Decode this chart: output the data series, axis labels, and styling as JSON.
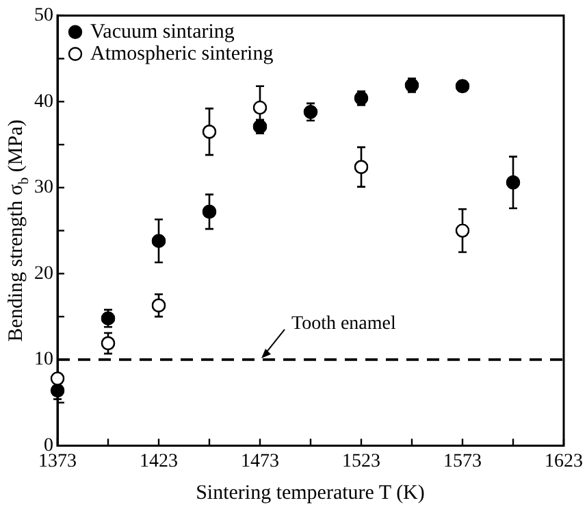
{
  "chart_data": {
    "type": "scatter",
    "xlabel": "Sintering temperature T (K)",
    "ylabel": "Bending strength σ$_{b}$ (MPa)",
    "xlim": [
      1373,
      1623
    ],
    "xticks": [
      1373,
      {
        "value": 1398,
        "label": null
      },
      1423,
      {
        "value": 1448,
        "label": null
      },
      1473,
      {
        "value": 1498,
        "label": null
      },
      1523,
      {
        "value": 1548,
        "label": null
      },
      1573,
      {
        "value": 1598,
        "label": null
      },
      1623
    ],
    "ylim": [
      0,
      50
    ],
    "yticks": [
      0,
      {
        "value": 5,
        "label": null
      },
      10,
      {
        "value": 15,
        "label": null
      },
      20,
      {
        "value": 25,
        "label": null
      },
      30,
      {
        "value": 35,
        "label": null
      },
      40,
      {
        "value": 45,
        "label": null
      },
      50
    ],
    "grid": false,
    "legend": "top left",
    "marker": "circle",
    "series": [
      {
        "name": "Vacuum sintaring",
        "color": "#000000",
        "x": [
          1373,
          1398,
          1423,
          1448,
          1473,
          1498,
          1523,
          1548,
          1573,
          1598
        ],
        "values": [
          6.4,
          14.8,
          23.8,
          27.2,
          37.1,
          38.8,
          40.4,
          41.9,
          41.8,
          30.6
        ],
        "errors": [
          1,
          1,
          2.5,
          2,
          0.8,
          1,
          0.8,
          0.8,
          0.6,
          3
        ]
      },
      {
        "name": "Atmospheric sintering",
        "color": "#ffffff",
        "x": [
          1373,
          1398,
          1423,
          1448,
          1473,
          1523,
          1573
        ],
        "values": [
          7.8,
          11.9,
          16.3,
          36.5,
          39.3,
          32.4,
          25
        ],
        "errors": [
          null,
          1.2,
          1.3,
          2.7,
          2.5,
          2.3,
          2.5
        ]
      }
    ],
    "ref_lines": [
      {
        "axis": "y",
        "value": 10,
        "line_style": "dashed",
        "color": "#000000"
      }
    ],
    "annotations": [
      {
        "text": "Tooth enamel",
        "x": 1473,
        "y": 10
      }
    ]
  }
}
